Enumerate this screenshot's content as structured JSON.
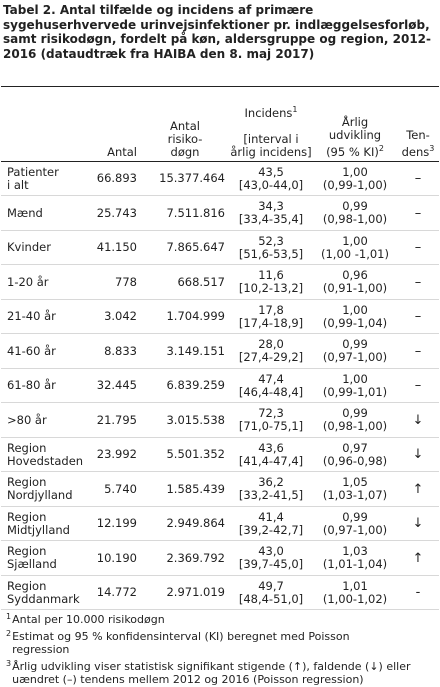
{
  "title": "Tabel 2. Antal tilfælde og incidens af primære sygehuserhvervede urinvejsinfektioner pr. indlæggelsesforløb, samt risikodøgn, fordelt på køn, aldersgruppe og region, 2012-2016 (dataudtræk fra HAIBA den 8. maj 2017)",
  "columns": {
    "antal": "Antal",
    "risikodogn": "Antal\nrisiko-\ndøgn",
    "incidens": "Incidens",
    "incidens_sub": "[interval i\nårlig incidens]",
    "incidens_sup": "1",
    "udvikling": "Årlig\nudvikling\n(95 % KI)",
    "udvikling_sup": "2",
    "tendens": "Ten-\ndens",
    "tendens_sup": "3"
  },
  "rows": [
    {
      "group": "Patienter\ni alt",
      "antal": "66.893",
      "risikodogn": "15.377.464",
      "incidens": "43,5\n[43,0-44,0]",
      "udvikling": "1,00\n(0,99-1,00)",
      "tendens": "–"
    },
    {
      "group": "Mænd",
      "antal": "25.743",
      "risikodogn": "7.511.816",
      "incidens": "34,3\n[33,4-35,4]",
      "udvikling": "0,99\n(0,98-1,00)",
      "tendens": "–"
    },
    {
      "group": "Kvinder",
      "antal": "41.150",
      "risikodogn": "7.865.647",
      "incidens": "52,3\n[51,6-53,5]",
      "udvikling": "1,00\n(1,00 -1,01)",
      "tendens": "–"
    },
    {
      "group": "1-20 år",
      "antal": "778",
      "risikodogn": "668.517",
      "incidens": "11,6\n[10,2-13,2]",
      "udvikling": "0,96\n(0,91-1,00)",
      "tendens": "–"
    },
    {
      "group": "21-40 år",
      "antal": "3.042",
      "risikodogn": "1.704.999",
      "incidens": "17,8\n[17,4-18,9]",
      "udvikling": "1,00\n(0,99-1,04)",
      "tendens": "–"
    },
    {
      "group": "41-60 år",
      "antal": "8.833",
      "risikodogn": "3.149.151",
      "incidens": "28,0\n[27,4-29,2]",
      "udvikling": "0,99\n(0,97-1,00)",
      "tendens": "–"
    },
    {
      "group": "61-80 år",
      "antal": "32.445",
      "risikodogn": "6.839.259",
      "incidens": "47,4\n[46,4-48,4]",
      "udvikling": "1,00\n(0,99-1,01)",
      "tendens": "–"
    },
    {
      "group": ">80 år",
      "antal": "21.795",
      "risikodogn": "3.015.538",
      "incidens": "72,3\n[71,0-75,1]",
      "udvikling": "0,99\n(0,98-1,00)",
      "tendens": "↓"
    },
    {
      "group": "Region\nHovedstaden",
      "antal": "23.992",
      "risikodogn": "5.501.352",
      "incidens": "43,6\n[41,4-47,4]",
      "udvikling": "0,97\n(0,96-0,98)",
      "tendens": "↓"
    },
    {
      "group": "Region\nNordjylland",
      "antal": "5.740",
      "risikodogn": "1.585.439",
      "incidens": "36,2\n[33,2-41,5]",
      "udvikling": "1,05\n(1,03-1,07)",
      "tendens": "↑"
    },
    {
      "group": "Region\nMidtjylland",
      "antal": "12.199",
      "risikodogn": "2.949.864",
      "incidens": "41,4\n[39,2-42,7]",
      "udvikling": "0,99\n(0,97-1,00)",
      "tendens": "↓"
    },
    {
      "group": "Region\nSjælland",
      "antal": "10.190",
      "risikodogn": "2.369.792",
      "incidens": "43,0\n[39,7-45,0]",
      "udvikling": "1,03\n(1,01-1,04)",
      "tendens": "↑"
    },
    {
      "group": "Region\nSyddanmark",
      "antal": "14.772",
      "risikodogn": "2.971.019",
      "incidens": "49,7\n[48,4-51,0]",
      "udvikling": "1,01\n(1,00-1,02)",
      "tendens": "-"
    }
  ],
  "footnotes": [
    {
      "sup": "1",
      "text": "Antal per 10.000 risikodøgn"
    },
    {
      "sup": "2",
      "text": "Estimat og 95 % konfidensinterval (KI) beregnet med Poisson\nregression"
    },
    {
      "sup": "3",
      "text": "Årlig udvikling viser statistisk signifikant stigende (↑), faldende (↓) eller\nuændret (–) tendens mellem 2012 og 2016 (Poisson regression)"
    }
  ]
}
